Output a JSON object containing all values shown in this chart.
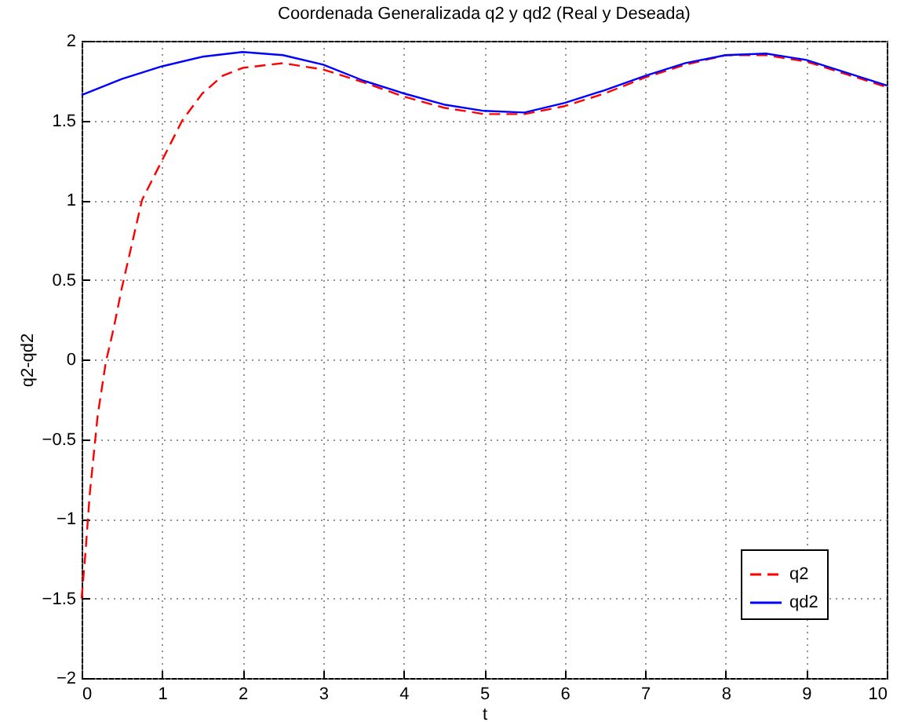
{
  "chart_data": {
    "type": "line",
    "title": "Coordenada Generalizada q2 y qd2 (Real y Deseada)",
    "xlabel": "t",
    "ylabel": "q2-qd2",
    "xlim": [
      0,
      10
    ],
    "xticks": [
      0,
      1,
      2,
      3,
      4,
      5,
      6,
      7,
      8,
      9,
      10
    ],
    "ylim": [
      -2,
      2
    ],
    "yticks": [
      -2,
      -1.5,
      -1,
      -0.5,
      0,
      0.5,
      1,
      1.5,
      2
    ],
    "grid": true,
    "legend": "bottom right",
    "series": [
      {
        "name": "q2",
        "color": "#ff0000",
        "line_style": "dashed",
        "x": [
          0,
          0.05,
          0.1,
          0.2,
          0.3,
          0.4,
          0.5,
          0.75,
          1,
          1.25,
          1.5,
          1.75,
          2,
          2.5,
          3,
          3.5,
          4,
          4.5,
          5,
          5.5,
          6,
          6.5,
          7,
          7.5,
          8,
          8.5,
          9,
          9.5,
          10
        ],
        "values": [
          -1.5,
          -1.2,
          -0.85,
          -0.35,
          -0.02,
          0.2,
          0.45,
          1.0,
          1.25,
          1.5,
          1.67,
          1.78,
          1.83,
          1.86,
          1.82,
          1.74,
          1.65,
          1.58,
          1.54,
          1.54,
          1.59,
          1.67,
          1.77,
          1.85,
          1.91,
          1.91,
          1.87,
          1.79,
          1.71
        ]
      },
      {
        "name": "qd2",
        "color": "#0000ff",
        "line_style": "solid",
        "x": [
          0,
          0.5,
          1,
          1.5,
          2,
          2.5,
          3,
          3.5,
          4,
          4.5,
          5,
          5.5,
          6,
          6.5,
          7,
          7.5,
          8,
          8.5,
          9,
          9.5,
          10
        ],
        "values": [
          1.66,
          1.76,
          1.84,
          1.9,
          1.93,
          1.91,
          1.85,
          1.75,
          1.67,
          1.6,
          1.56,
          1.55,
          1.61,
          1.69,
          1.78,
          1.86,
          1.91,
          1.92,
          1.88,
          1.8,
          1.72
        ]
      }
    ]
  }
}
